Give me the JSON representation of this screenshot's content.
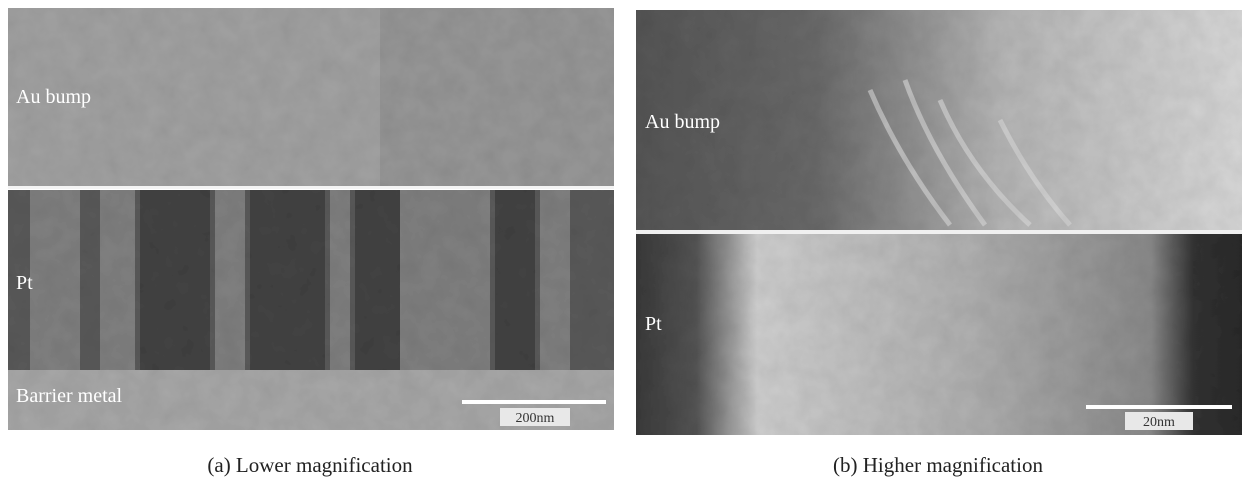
{
  "panels": [
    {
      "labels": {
        "upper": "Au bump",
        "middle": "Pt",
        "lower": "Barrier metal"
      },
      "scale_bar": "200nm",
      "caption": "(a) Lower magnification"
    },
    {
      "labels": {
        "upper": "Au bump",
        "middle": "Pt"
      },
      "scale_bar": "20nm",
      "caption": "(b) Higher magnification"
    }
  ]
}
